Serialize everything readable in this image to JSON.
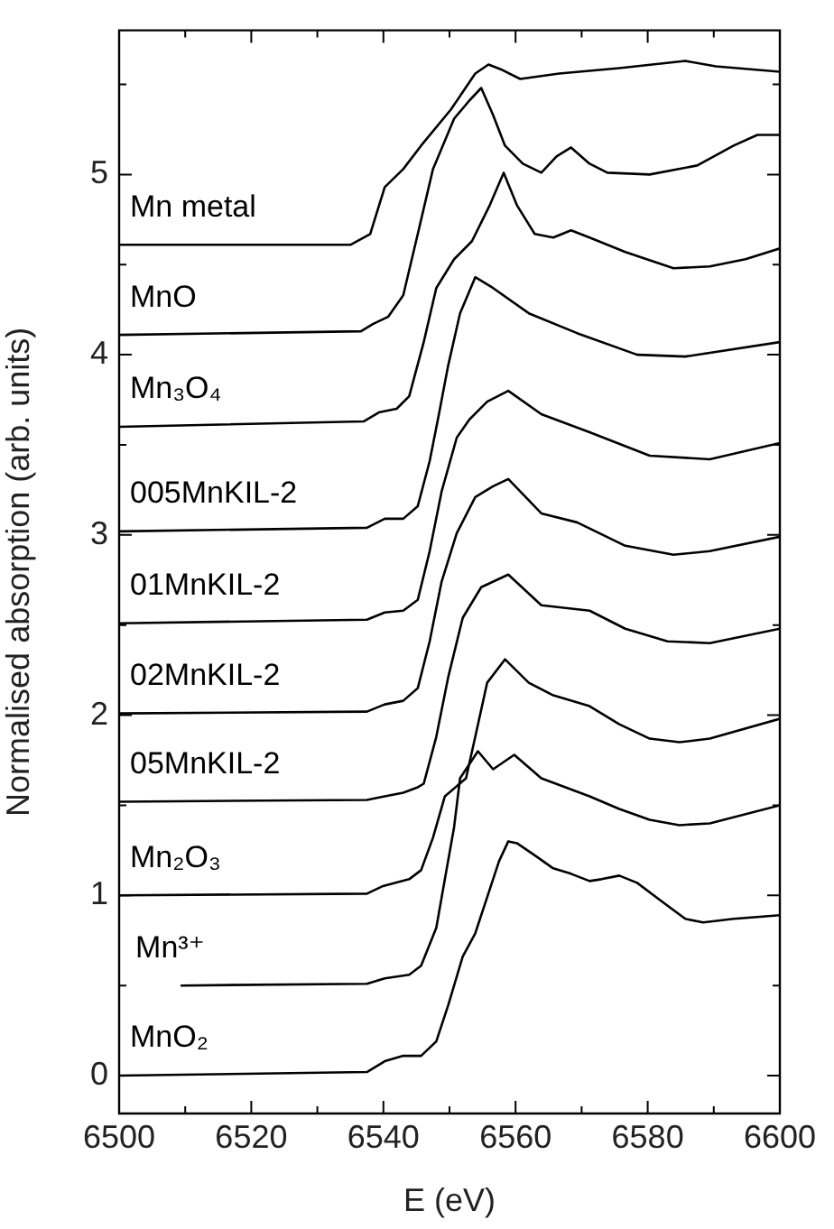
{
  "chart_data": {
    "type": "line",
    "xlabel": "E (eV)",
    "ylabel": "Normalised absorption (arb. units)",
    "xlim": [
      6500,
      6600
    ],
    "xticks": [
      6500,
      {
        "value": 6510,
        "label": null
      },
      6520,
      {
        "value": 6530,
        "label": null
      },
      6540,
      {
        "value": 6550,
        "label": null
      },
      6560,
      {
        "value": 6570,
        "label": null
      },
      6580,
      {
        "value": 6590,
        "label": null
      },
      6600
    ],
    "ylim": [
      -0.21,
      5.8
    ],
    "yticks": [
      0,
      {
        "value": 0.5,
        "label": null
      },
      1,
      {
        "value": 1.5,
        "label": null
      },
      2,
      {
        "value": 2.5,
        "label": null
      },
      3,
      {
        "value": 3.5,
        "label": null
      },
      4,
      {
        "value": 4.5,
        "label": null
      },
      5,
      {
        "value": 5.5,
        "label": null
      }
    ],
    "grid": false,
    "legend": false,
    "marker": "none",
    "line_style": "solid",
    "series": [
      {
        "name": "Mn metal",
        "color": "#000000",
        "x": [
          6500,
          6535,
          6538,
          6540.2,
          6543,
          6545.7,
          6550.2,
          6553.9,
          6555.9,
          6558,
          6560.7,
          6566.6,
          6575.7,
          6585.7,
          6590.3,
          6600
        ],
        "values": [
          4.61,
          4.61,
          4.67,
          4.93,
          5.03,
          5.16,
          5.36,
          5.56,
          5.61,
          5.58,
          5.53,
          5.56,
          5.59,
          5.63,
          5.6,
          5.57
        ]
      },
      {
        "name": "MnO",
        "color": "#000000",
        "x": [
          6500,
          6536.6,
          6538.4,
          6540.7,
          6543,
          6545.2,
          6547.5,
          6550.7,
          6553,
          6554.8,
          6556.6,
          6558.4,
          6561.1,
          6563.9,
          6566.2,
          6568.4,
          6571.2,
          6573.9,
          6580.3,
          6587.5,
          6593,
          6596.6,
          6600
        ],
        "values": [
          4.11,
          4.13,
          4.17,
          4.21,
          4.33,
          4.67,
          5.03,
          5.31,
          5.41,
          5.48,
          5.33,
          5.16,
          5.06,
          5.01,
          5.1,
          5.15,
          5.06,
          5.01,
          5.0,
          5.05,
          5.16,
          5.22,
          5.22
        ]
      },
      {
        "name": "Mn₃O₄",
        "color": "#000000",
        "x": [
          6500,
          6537,
          6539.3,
          6542,
          6543.9,
          6546.1,
          6548,
          6550.7,
          6553.4,
          6556.1,
          6558.2,
          6560.2,
          6562.9,
          6565.7,
          6568.4,
          6571.2,
          6576.6,
          6583.9,
          6589.4,
          6594.8,
          6600
        ],
        "values": [
          3.6,
          3.63,
          3.68,
          3.7,
          3.77,
          4.07,
          4.37,
          4.53,
          4.63,
          4.83,
          5.01,
          4.83,
          4.67,
          4.65,
          4.69,
          4.65,
          4.57,
          4.48,
          4.49,
          4.53,
          4.59
        ]
      },
      {
        "name": "005MnKIL-2",
        "color": "#000000",
        "x": [
          6500,
          6537.5,
          6540.2,
          6543,
          6545.2,
          6547,
          6548.4,
          6549.8,
          6551.6,
          6553.9,
          6556.6,
          6562,
          6569.3,
          6578.4,
          6585.7,
          6600
        ],
        "values": [
          3.02,
          3.04,
          3.09,
          3.09,
          3.16,
          3.41,
          3.67,
          3.94,
          4.23,
          4.43,
          4.37,
          4.23,
          4.12,
          4.0,
          3.99,
          4.07
        ]
      },
      {
        "name": "01MnKIL-2",
        "color": "#000000",
        "x": [
          6500,
          6537.5,
          6540.2,
          6543,
          6545.2,
          6547,
          6548.8,
          6551.1,
          6553,
          6555.7,
          6558.9,
          6563.9,
          6571.2,
          6580.3,
          6589.4,
          6600
        ],
        "values": [
          2.51,
          2.53,
          2.57,
          2.58,
          2.64,
          2.91,
          3.24,
          3.54,
          3.64,
          3.74,
          3.8,
          3.67,
          3.57,
          3.44,
          3.42,
          3.51
        ]
      },
      {
        "name": "02MnKIL-2",
        "color": "#000000",
        "x": [
          6500,
          6537.5,
          6540.2,
          6543,
          6545.2,
          6547,
          6548.8,
          6551.1,
          6553.9,
          6556.6,
          6558.9,
          6563.9,
          6569.3,
          6576.6,
          6583.9,
          6589.4,
          6600
        ],
        "values": [
          2.01,
          2.02,
          2.06,
          2.08,
          2.15,
          2.41,
          2.74,
          3.01,
          3.21,
          3.27,
          3.31,
          3.12,
          3.07,
          2.94,
          2.89,
          2.91,
          2.99
        ]
      },
      {
        "name": "05MnKIL-2",
        "color": "#000000",
        "x": [
          6500,
          6537.5,
          6540.2,
          6543,
          6545.2,
          6546.1,
          6548,
          6549.8,
          6552,
          6554.8,
          6558.9,
          6563.9,
          6571.2,
          6576.6,
          6583,
          6589.4,
          6600
        ],
        "values": [
          1.52,
          1.53,
          1.55,
          1.57,
          1.6,
          1.62,
          1.88,
          2.21,
          2.54,
          2.71,
          2.78,
          2.61,
          2.58,
          2.48,
          2.41,
          2.4,
          2.48
        ]
      },
      {
        "name": "Mn₂O₃",
        "color": "#000000",
        "x": [
          6500,
          6537.5,
          6539.8,
          6543.9,
          6545.7,
          6547.5,
          6549.3,
          6552.5,
          6553.9,
          6555.7,
          6558.4,
          6562,
          6565.7,
          6571.2,
          6575.7,
          6580.3,
          6584.8,
          6589.4,
          6600
        ],
        "values": [
          1.0,
          1.01,
          1.05,
          1.09,
          1.14,
          1.32,
          1.55,
          1.65,
          1.88,
          2.18,
          2.31,
          2.18,
          2.11,
          2.05,
          1.95,
          1.87,
          1.85,
          1.87,
          1.98
        ]
      },
      {
        "name": "Mn³⁺",
        "color": "#000000",
        "x": [
          6509.3,
          6537.5,
          6540.2,
          6543.9,
          6545.7,
          6548,
          6549.3,
          6550.7,
          6551.6,
          6554.3,
          6556.6,
          6559.8,
          6563.9,
          6571.2,
          6575.7,
          6580.3,
          6584.8,
          6589.4,
          6600
        ],
        "values": [
          0.5,
          0.51,
          0.54,
          0.56,
          0.61,
          0.82,
          1.09,
          1.38,
          1.65,
          1.8,
          1.7,
          1.78,
          1.65,
          1.55,
          1.48,
          1.42,
          1.39,
          1.4,
          1.5
        ]
      },
      {
        "name": "MnO₂",
        "color": "#000000",
        "x": [
          6500,
          6537.5,
          6540.2,
          6543,
          6545.7,
          6548,
          6549.8,
          6552,
          6553.9,
          6555.7,
          6557.5,
          6558.9,
          6560.2,
          6563,
          6565.7,
          6568.4,
          6571.2,
          6573,
          6575.7,
          6578.4,
          6582,
          6585.7,
          6588.4,
          6593,
          6600
        ],
        "values": [
          0.0,
          0.02,
          0.08,
          0.11,
          0.11,
          0.19,
          0.39,
          0.66,
          0.79,
          0.99,
          1.19,
          1.3,
          1.29,
          1.22,
          1.15,
          1.12,
          1.08,
          1.09,
          1.11,
          1.07,
          0.97,
          0.87,
          0.85,
          0.87,
          0.89
        ]
      }
    ]
  }
}
